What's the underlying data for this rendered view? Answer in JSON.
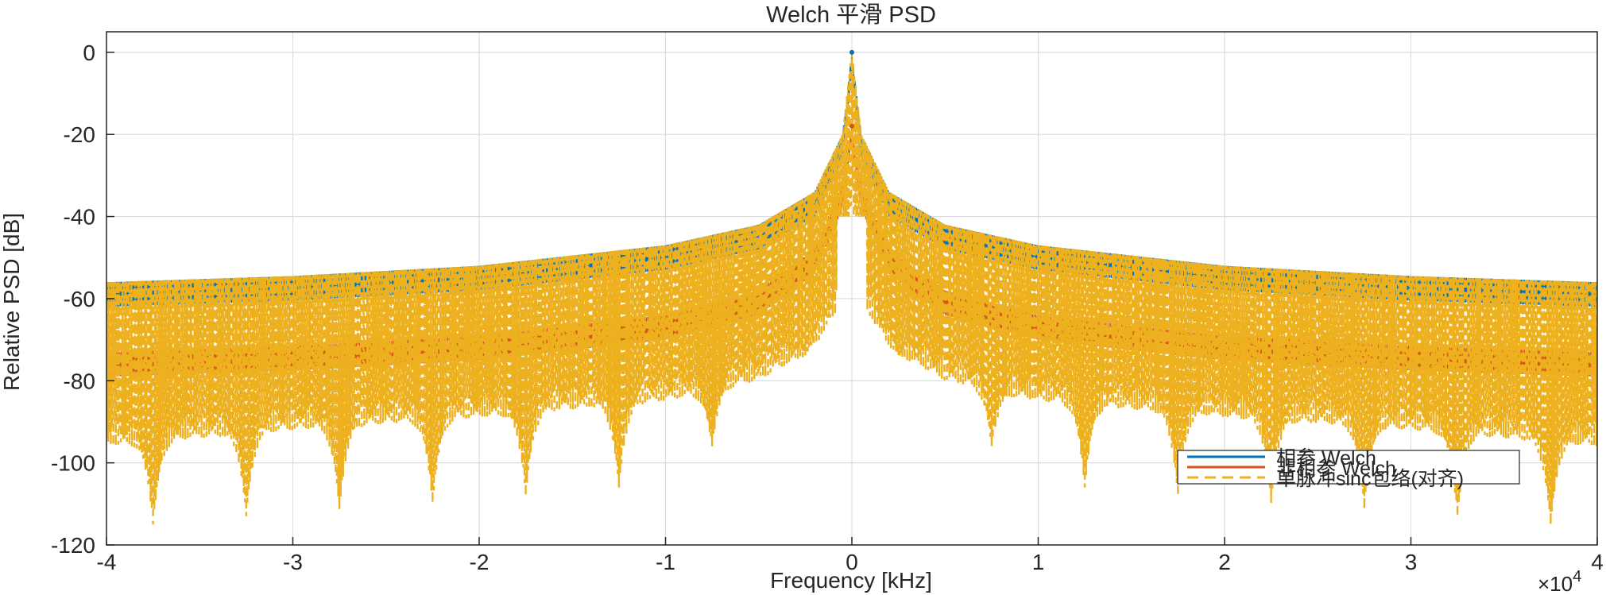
{
  "chart_data": {
    "type": "line",
    "title": "Welch 平滑 PSD",
    "xlabel": "Frequency [kHz]",
    "ylabel": "Relative PSD [dB]",
    "x_exponent_label": "×10",
    "x_exponent_power": "4",
    "xlim": [
      -4,
      4
    ],
    "ylim": [
      -120,
      5
    ],
    "xticks": [
      -4,
      -3,
      -2,
      -1,
      0,
      1,
      2,
      3,
      4
    ],
    "yticks": [
      0,
      -20,
      -40,
      -60,
      -80,
      -100,
      -120
    ],
    "grid": true,
    "legend_position": "bottom-right",
    "legend": [
      "相参 Welch",
      "非相参 Welch",
      "单脉冲sinc包络(对齐)"
    ],
    "series": [
      {
        "name": "相参 Welch",
        "color": "#0072BD",
        "style": "solid",
        "peak": 0,
        "envelope_x": [
          -4,
          -3,
          -2,
          -1,
          -0.5,
          -0.2,
          -0.05,
          0,
          0.05,
          0.2,
          0.5,
          1,
          2,
          3,
          4
        ],
        "envelope_upper": [
          -56,
          -54.5,
          -52,
          -47,
          -42,
          -34,
          -20,
          0,
          -20,
          -34,
          -42,
          -47,
          -52,
          -54.5,
          -56
        ],
        "envelope_lower": [
          -62,
          -60.5,
          -58,
          -53,
          -48,
          -40,
          -26,
          -5,
          -26,
          -40,
          -48,
          -53,
          -58,
          -60.5,
          -62
        ]
      },
      {
        "name": "非相参 Welch",
        "color": "#D95319",
        "style": "solid",
        "peak": -18,
        "envelope_x": [
          -4,
          -3,
          -2,
          -1,
          -0.5,
          -0.2,
          -0.05,
          0,
          0.05,
          0.2,
          0.5,
          1,
          2,
          3,
          4
        ],
        "envelope_upper": [
          -73,
          -71.5,
          -69,
          -64,
          -58,
          -48,
          -32,
          -18,
          -32,
          -48,
          -58,
          -64,
          -69,
          -71.5,
          -73
        ],
        "envelope_lower": [
          -79,
          -77.5,
          -75,
          -70,
          -64,
          -54,
          -38,
          -22,
          -38,
          -54,
          -64,
          -70,
          -75,
          -77.5,
          -79
        ]
      },
      {
        "name": "单脉冲sinc包络(对齐)",
        "color": "#EDB120",
        "style": "dashed",
        "peak": 0,
        "envelope_x": [
          -4,
          -3,
          -2,
          -1,
          -0.5,
          -0.2,
          -0.05,
          0,
          0.05,
          0.2,
          0.5,
          1,
          2,
          3,
          4
        ],
        "envelope_upper": [
          -56,
          -54.5,
          -52,
          -47,
          -42,
          -34,
          -20,
          0,
          -20,
          -34,
          -42,
          -47,
          -52,
          -54.5,
          -56
        ],
        "null_spacing": 0.5,
        "null_depth_min": -116,
        "baseline_lower": [
          -90,
          -86,
          -83,
          -79,
          -74,
          -66,
          -55,
          -30,
          -55,
          -66,
          -74,
          -79,
          -83,
          -86,
          -90
        ]
      }
    ]
  }
}
